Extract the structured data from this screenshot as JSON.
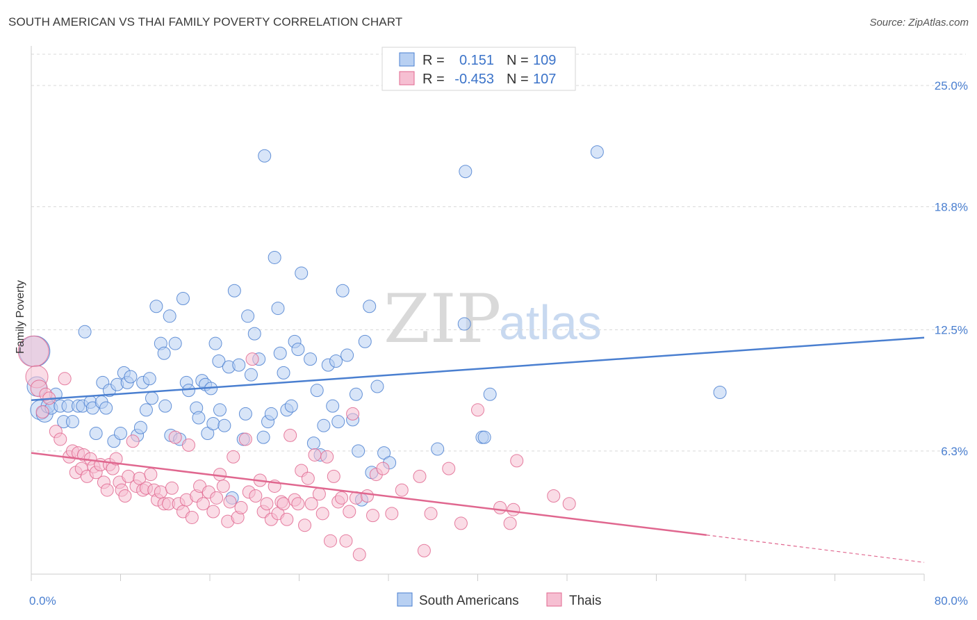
{
  "title": "SOUTH AMERICAN VS THAI FAMILY POVERTY CORRELATION CHART",
  "source": "Source: ZipAtlas.com",
  "watermark": {
    "zip": "ZIP",
    "atlas": "atlas"
  },
  "colors": {
    "blue": "#4a7fd0",
    "blue_fill": "#b8d0f2",
    "pink": "#e0678f",
    "pink_fill": "#f6bfd2",
    "grid": "#d8d8d8"
  },
  "legend": {
    "rows": [
      {
        "r_label": "R =",
        "r_value": "0.151",
        "n_label": "N =",
        "n_value": "109"
      },
      {
        "r_label": "R =",
        "r_value": "-0.453",
        "n_label": "N =",
        "n_value": "107"
      }
    ]
  },
  "bottom_legend": {
    "series1": "South Americans",
    "series2": "Thais"
  },
  "chart_data": {
    "type": "scatter",
    "title": "SOUTH AMERICAN VS THAI FAMILY POVERTY CORRELATION CHART",
    "xlabel": "",
    "ylabel": "Family Poverty",
    "xlim": [
      0,
      80
    ],
    "ylim": [
      0,
      26.6
    ],
    "x_tick_labels": [
      "0.0%",
      "80.0%"
    ],
    "y_ticks": [
      6.3,
      12.5,
      18.8,
      25.0
    ],
    "y_tick_labels": [
      "6.3%",
      "12.5%",
      "18.8%",
      "25.0%"
    ],
    "series": [
      {
        "name": "South Americans",
        "r": 0.151,
        "n": 109,
        "trend": {
          "x0": 0,
          "y0": 8.9,
          "x1": 80,
          "y1": 12.1
        },
        "points": [
          [
            0.3,
            11.4,
            22
          ],
          [
            0.5,
            9.6,
            14
          ],
          [
            0.8,
            8.4,
            14
          ],
          [
            1.2,
            8.2,
            12
          ],
          [
            1.5,
            8.6,
            10
          ],
          [
            1.8,
            8.5,
            9
          ],
          [
            2.2,
            9.2,
            9
          ],
          [
            2.6,
            8.6,
            9
          ],
          [
            2.9,
            7.8,
            9
          ],
          [
            3.3,
            8.6,
            9
          ],
          [
            3.7,
            7.8,
            9
          ],
          [
            4.2,
            8.6,
            9
          ],
          [
            4.6,
            8.6,
            9
          ],
          [
            4.8,
            12.4,
            9
          ],
          [
            5.3,
            8.8,
            9
          ],
          [
            5.5,
            8.5,
            9
          ],
          [
            5.8,
            7.2,
            9
          ],
          [
            6.3,
            8.8,
            9
          ],
          [
            6.4,
            9.8,
            9
          ],
          [
            6.7,
            8.5,
            9
          ],
          [
            7.0,
            9.4,
            9
          ],
          [
            7.4,
            6.8,
            9
          ],
          [
            7.7,
            9.7,
            9
          ],
          [
            8.0,
            7.2,
            9
          ],
          [
            8.3,
            10.3,
            9
          ],
          [
            8.6,
            9.8,
            9
          ],
          [
            8.9,
            10.1,
            9
          ],
          [
            9.5,
            7.1,
            9
          ],
          [
            9.8,
            7.5,
            9
          ],
          [
            10.0,
            9.8,
            9
          ],
          [
            10.3,
            8.4,
            9
          ],
          [
            10.6,
            10.0,
            9
          ],
          [
            10.8,
            9.0,
            9
          ],
          [
            11.2,
            13.7,
            9
          ],
          [
            11.6,
            11.8,
            9
          ],
          [
            11.9,
            11.3,
            9
          ],
          [
            12.0,
            8.6,
            9
          ],
          [
            12.4,
            13.2,
            9
          ],
          [
            12.5,
            7.1,
            9
          ],
          [
            12.9,
            11.8,
            9
          ],
          [
            13.3,
            6.9,
            9
          ],
          [
            13.6,
            14.1,
            9
          ],
          [
            13.9,
            9.8,
            9
          ],
          [
            14.1,
            9.4,
            9
          ],
          [
            14.8,
            8.5,
            9
          ],
          [
            15.0,
            8.0,
            9
          ],
          [
            15.3,
            9.9,
            9
          ],
          [
            15.6,
            9.7,
            9
          ],
          [
            15.8,
            7.2,
            9
          ],
          [
            16.1,
            9.5,
            9
          ],
          [
            16.3,
            7.7,
            9
          ],
          [
            16.5,
            11.8,
            9
          ],
          [
            16.8,
            10.9,
            9
          ],
          [
            16.9,
            8.4,
            9
          ],
          [
            17.3,
            7.6,
            9
          ],
          [
            17.7,
            10.6,
            9
          ],
          [
            18.0,
            3.9,
            9
          ],
          [
            18.2,
            14.5,
            9
          ],
          [
            18.6,
            10.7,
            9
          ],
          [
            19.0,
            6.9,
            9
          ],
          [
            19.2,
            8.2,
            9
          ],
          [
            19.4,
            13.2,
            9
          ],
          [
            19.7,
            10.2,
            9
          ],
          [
            20.0,
            12.3,
            9
          ],
          [
            20.4,
            11.0,
            9
          ],
          [
            20.8,
            7.0,
            9
          ],
          [
            20.9,
            21.4,
            9
          ],
          [
            21.2,
            7.8,
            9
          ],
          [
            21.5,
            8.2,
            9
          ],
          [
            21.8,
            16.2,
            9
          ],
          [
            22.1,
            13.6,
            9
          ],
          [
            22.3,
            11.3,
            9
          ],
          [
            22.6,
            10.3,
            9
          ],
          [
            22.9,
            8.4,
            9
          ],
          [
            23.3,
            8.6,
            9
          ],
          [
            23.6,
            11.9,
            9
          ],
          [
            23.9,
            11.5,
            9
          ],
          [
            24.2,
            15.4,
            9
          ],
          [
            25.0,
            11.0,
            9
          ],
          [
            25.3,
            6.7,
            9
          ],
          [
            25.6,
            9.4,
            9
          ],
          [
            25.9,
            6.1,
            9
          ],
          [
            26.2,
            7.6,
            9
          ],
          [
            26.6,
            10.7,
            9
          ],
          [
            27.0,
            8.6,
            9
          ],
          [
            27.3,
            10.9,
            9
          ],
          [
            27.5,
            7.8,
            9
          ],
          [
            27.9,
            14.5,
            9
          ],
          [
            28.3,
            11.2,
            9
          ],
          [
            28.8,
            7.9,
            9
          ],
          [
            29.1,
            9.2,
            9
          ],
          [
            29.3,
            6.3,
            9
          ],
          [
            29.6,
            3.8,
            9
          ],
          [
            29.9,
            11.9,
            9
          ],
          [
            30.3,
            13.7,
            9
          ],
          [
            30.5,
            5.2,
            9
          ],
          [
            31.0,
            9.6,
            9
          ],
          [
            31.6,
            6.2,
            9
          ],
          [
            32.1,
            5.7,
            9
          ],
          [
            36.4,
            6.4,
            9
          ],
          [
            38.8,
            12.8,
            9
          ],
          [
            38.9,
            20.6,
            9
          ],
          [
            40.4,
            7.0,
            9
          ],
          [
            40.6,
            7.0,
            9
          ],
          [
            41.1,
            9.2,
            9
          ],
          [
            50.7,
            21.6,
            9
          ],
          [
            61.7,
            9.3,
            9
          ]
        ]
      },
      {
        "name": "Thais",
        "r": -0.453,
        "n": 107,
        "trend": {
          "x0": 0,
          "y0": 6.2,
          "x1": 60.5,
          "y1": 2.0,
          "dashed_to": {
            "x": 80,
            "y": 0.6
          }
        },
        "points": [
          [
            0.2,
            11.4,
            22
          ],
          [
            0.5,
            10.1,
            16
          ],
          [
            0.7,
            9.5,
            12
          ],
          [
            1.0,
            8.3,
            9
          ],
          [
            1.3,
            9.2,
            9
          ],
          [
            1.6,
            9.0,
            9
          ],
          [
            2.2,
            7.3,
            9
          ],
          [
            2.6,
            6.9,
            9
          ],
          [
            3.0,
            10.0,
            9
          ],
          [
            3.4,
            6.0,
            9
          ],
          [
            3.7,
            6.3,
            9
          ],
          [
            4.0,
            5.2,
            9
          ],
          [
            4.2,
            6.2,
            9
          ],
          [
            4.5,
            5.4,
            9
          ],
          [
            4.7,
            6.1,
            9
          ],
          [
            5.0,
            5.0,
            9
          ],
          [
            5.3,
            5.9,
            9
          ],
          [
            5.6,
            5.5,
            9
          ],
          [
            5.8,
            5.2,
            9
          ],
          [
            6.2,
            5.6,
            9
          ],
          [
            6.5,
            4.7,
            9
          ],
          [
            6.8,
            4.3,
            9
          ],
          [
            7.0,
            5.6,
            9
          ],
          [
            7.3,
            5.4,
            9
          ],
          [
            7.6,
            5.9,
            9
          ],
          [
            7.9,
            4.7,
            9
          ],
          [
            8.1,
            4.3,
            9
          ],
          [
            8.4,
            4.0,
            9
          ],
          [
            8.7,
            5.0,
            9
          ],
          [
            9.1,
            6.8,
            9
          ],
          [
            9.4,
            4.5,
            9
          ],
          [
            9.7,
            4.9,
            9
          ],
          [
            10.0,
            4.3,
            9
          ],
          [
            10.3,
            4.4,
            9
          ],
          [
            10.7,
            5.1,
            9
          ],
          [
            11.0,
            4.3,
            9
          ],
          [
            11.3,
            3.8,
            9
          ],
          [
            11.6,
            4.2,
            9
          ],
          [
            11.9,
            3.6,
            9
          ],
          [
            12.3,
            3.6,
            9
          ],
          [
            12.6,
            4.4,
            9
          ],
          [
            12.9,
            7.0,
            9
          ],
          [
            13.2,
            3.6,
            9
          ],
          [
            13.6,
            3.2,
            9
          ],
          [
            13.9,
            3.8,
            9
          ],
          [
            14.1,
            6.6,
            9
          ],
          [
            14.4,
            2.9,
            9
          ],
          [
            14.8,
            4.0,
            9
          ],
          [
            15.1,
            4.5,
            9
          ],
          [
            15.4,
            3.6,
            9
          ],
          [
            15.9,
            4.2,
            9
          ],
          [
            16.3,
            3.2,
            9
          ],
          [
            16.6,
            3.9,
            9
          ],
          [
            16.9,
            5.1,
            9
          ],
          [
            17.2,
            4.5,
            9
          ],
          [
            17.6,
            2.7,
            9
          ],
          [
            17.8,
            3.7,
            9
          ],
          [
            18.1,
            6.0,
            9
          ],
          [
            18.5,
            2.9,
            9
          ],
          [
            18.8,
            3.4,
            9
          ],
          [
            19.2,
            6.9,
            9
          ],
          [
            19.5,
            4.2,
            9
          ],
          [
            19.8,
            11.0,
            9
          ],
          [
            20.1,
            4.0,
            9
          ],
          [
            20.5,
            4.8,
            9
          ],
          [
            20.8,
            3.2,
            9
          ],
          [
            21.1,
            3.6,
            9
          ],
          [
            21.5,
            2.8,
            9
          ],
          [
            21.8,
            4.5,
            9
          ],
          [
            22.1,
            3.1,
            9
          ],
          [
            22.4,
            3.7,
            9
          ],
          [
            22.6,
            3.6,
            9
          ],
          [
            22.9,
            2.8,
            9
          ],
          [
            23.2,
            7.1,
            9
          ],
          [
            23.6,
            3.8,
            9
          ],
          [
            23.9,
            3.6,
            9
          ],
          [
            24.2,
            5.3,
            9
          ],
          [
            24.5,
            2.5,
            9
          ],
          [
            24.8,
            4.9,
            9
          ],
          [
            25.1,
            3.6,
            9
          ],
          [
            25.4,
            6.1,
            9
          ],
          [
            25.8,
            4.1,
            9
          ],
          [
            26.1,
            3.1,
            9
          ],
          [
            26.5,
            6.0,
            9
          ],
          [
            26.8,
            1.7,
            9
          ],
          [
            27.1,
            5.0,
            9
          ],
          [
            27.5,
            3.7,
            9
          ],
          [
            27.8,
            3.9,
            9
          ],
          [
            28.2,
            1.7,
            9
          ],
          [
            28.5,
            3.2,
            9
          ],
          [
            28.8,
            8.2,
            9
          ],
          [
            29.1,
            3.9,
            9
          ],
          [
            29.4,
            1.0,
            9
          ],
          [
            30.1,
            4.0,
            9
          ],
          [
            30.6,
            3.0,
            9
          ],
          [
            30.9,
            5.1,
            9
          ],
          [
            31.5,
            5.4,
            9
          ],
          [
            32.3,
            3.1,
            9
          ],
          [
            33.2,
            4.3,
            9
          ],
          [
            34.8,
            5.0,
            9
          ],
          [
            35.2,
            1.2,
            9
          ],
          [
            35.8,
            3.1,
            9
          ],
          [
            37.4,
            5.4,
            9
          ],
          [
            38.5,
            2.6,
            9
          ],
          [
            40.0,
            8.4,
            9
          ],
          [
            42.0,
            3.4,
            9
          ],
          [
            42.9,
            2.6,
            9
          ],
          [
            43.2,
            3.3,
            9
          ],
          [
            43.5,
            5.8,
            9
          ],
          [
            46.8,
            4.0,
            9
          ],
          [
            48.2,
            3.6,
            9
          ]
        ]
      }
    ],
    "legend_position": "top-center"
  }
}
